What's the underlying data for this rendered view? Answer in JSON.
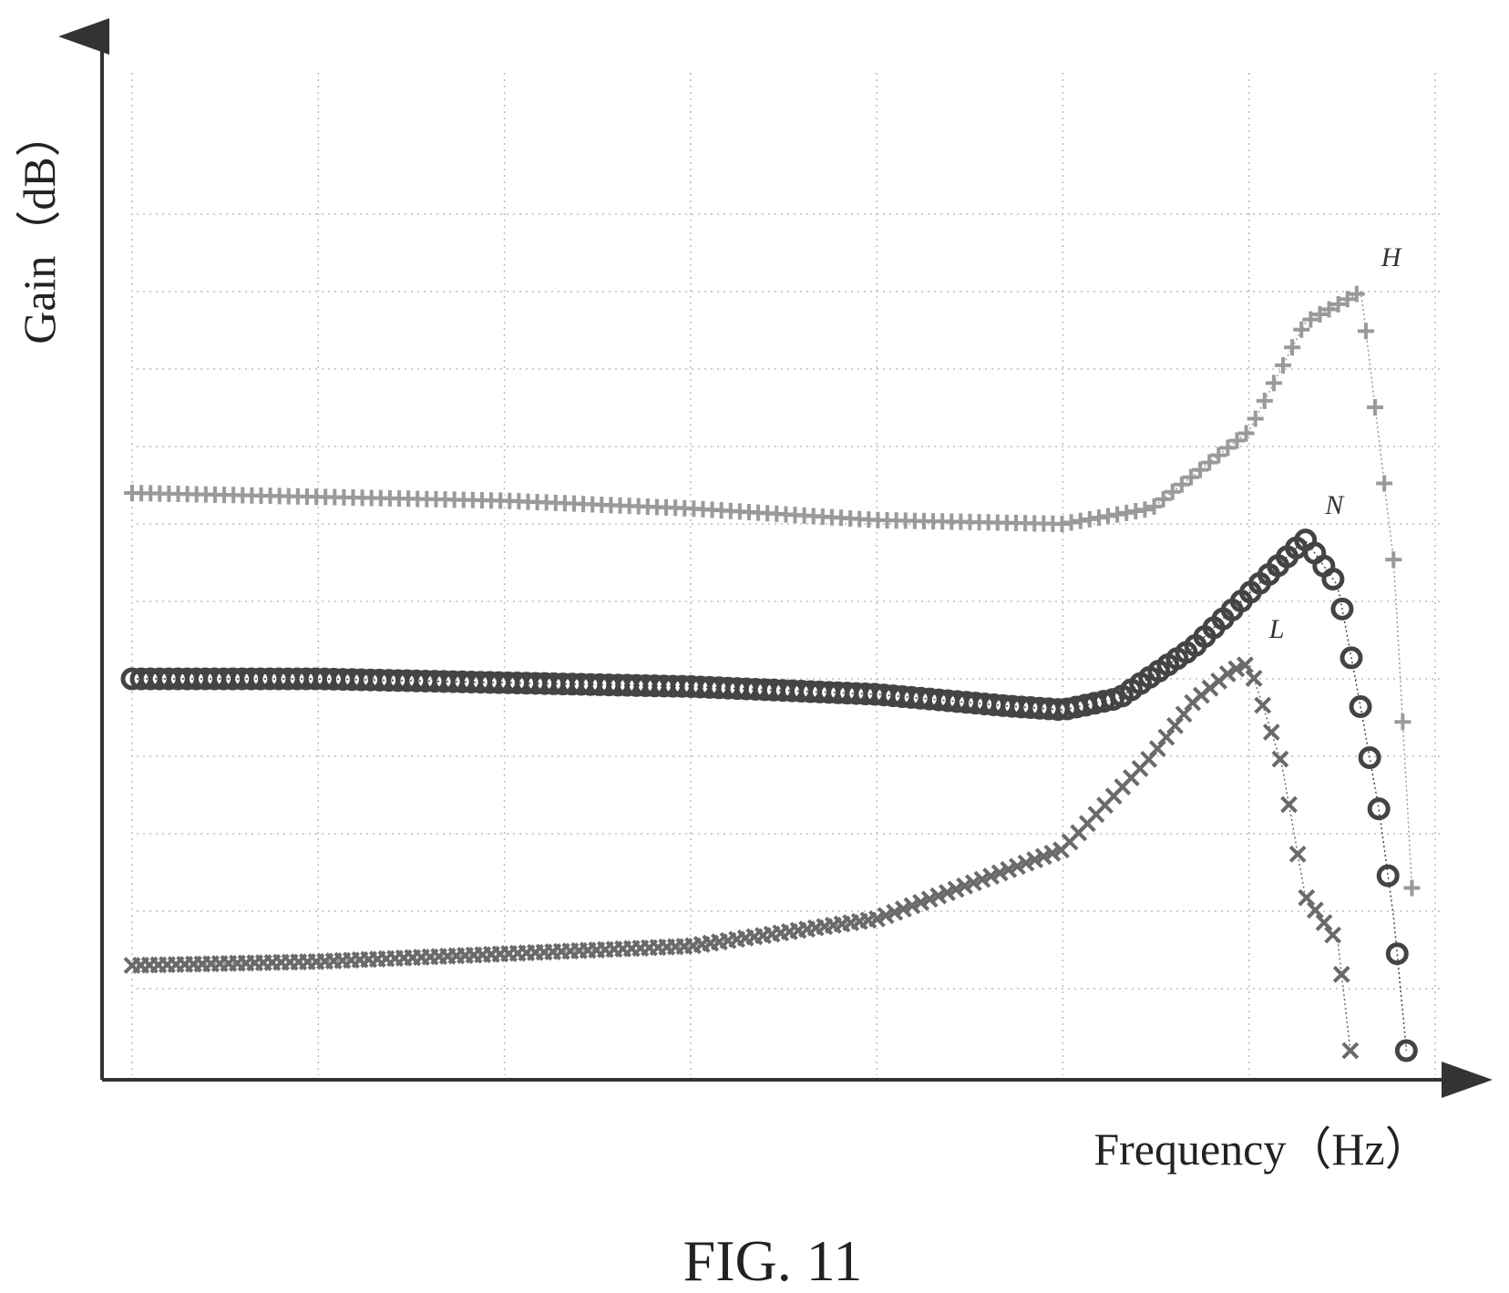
{
  "figure_label": "FIG. 11",
  "chart_data": {
    "type": "line",
    "title": "",
    "xlabel": "Frequency（Hz）",
    "ylabel": "Gain（dB）",
    "x_scale": "log",
    "xlim": [
      1,
      10000000
    ],
    "ylim": [
      0,
      12
    ],
    "grid": true,
    "tick_labels_printed": false,
    "series": [
      {
        "name": "H",
        "marker": "plus",
        "color": "#9a9a9a",
        "x": [
          1,
          10,
          100,
          1000,
          10000,
          100000,
          300000,
          1000000,
          2000000,
          4000000,
          6000000,
          7500000
        ],
        "y": [
          7.4,
          7.35,
          7.3,
          7.2,
          7.05,
          7.0,
          7.2,
          8.2,
          9.6,
          10.0,
          6.5,
          2.3
        ]
      },
      {
        "name": "N",
        "marker": "circle",
        "color": "#444444",
        "x": [
          1,
          10,
          100,
          1000,
          10000,
          50000,
          100000,
          200000,
          500000,
          1000000,
          2000000,
          3000000,
          4000000,
          5000000,
          6000000,
          7000000
        ],
        "y": [
          5.0,
          5.0,
          4.95,
          4.9,
          4.8,
          4.65,
          4.6,
          4.75,
          5.4,
          6.1,
          6.8,
          6.2,
          4.6,
          3.3,
          1.9,
          0.2
        ]
      },
      {
        "name": "L",
        "marker": "cross",
        "color": "#6a6a6a",
        "x": [
          1,
          10,
          100,
          1000,
          10000,
          100000,
          300000,
          500000,
          800000,
          1000000,
          1500000,
          2000000,
          3000000,
          3500000
        ],
        "y": [
          1.3,
          1.35,
          1.45,
          1.55,
          1.9,
          2.8,
          4.0,
          4.7,
          5.1,
          5.2,
          3.9,
          2.2,
          1.6,
          0.2
        ]
      }
    ]
  }
}
